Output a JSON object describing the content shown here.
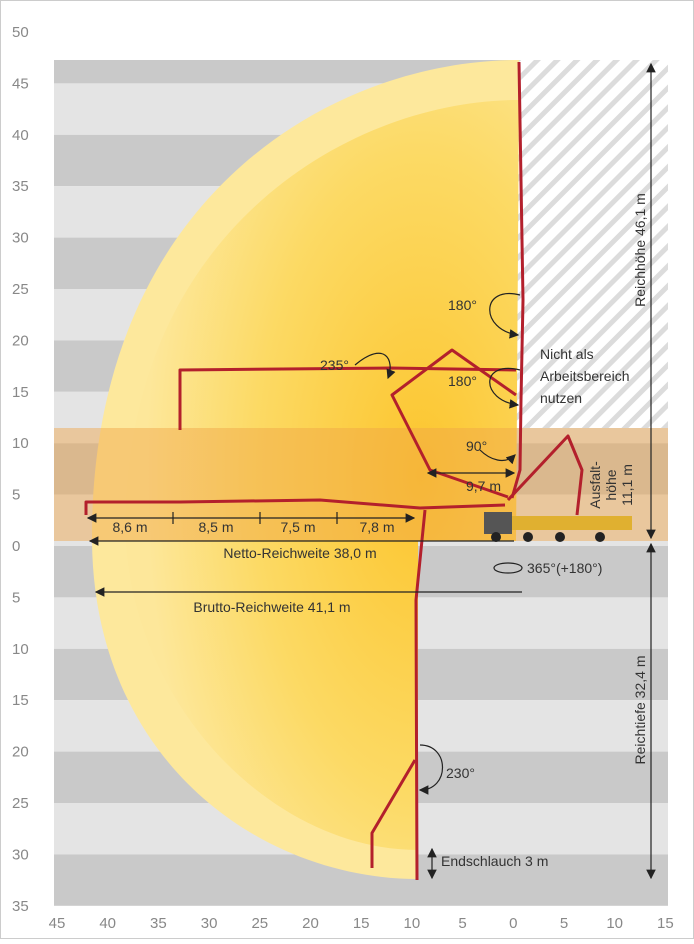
{
  "y_axis_labels": [
    50,
    45,
    40,
    35,
    30,
    25,
    20,
    15,
    10,
    5,
    0,
    5,
    10,
    15,
    20,
    25,
    30,
    35
  ],
  "x_axis_labels": [
    45,
    40,
    35,
    30,
    25,
    20,
    15,
    10,
    5,
    0,
    5,
    10,
    15
  ],
  "annotations": {
    "angle_top": "180°",
    "angle_left": "235°",
    "angle_mid": "180°",
    "angle_low": "90°",
    "angle_bottom": "230°",
    "rotation": "365°(+180°)",
    "no_work_zone": [
      "Nicht als",
      "Arbeitsbereich",
      "nutzen"
    ],
    "outrigger_height": [
      "Ausfalt-",
      "höhe",
      "11,1 m"
    ],
    "reach_height": "Reichhöhe 46,1 m",
    "reach_depth": "Reichtiefe 32,4 m",
    "segment_inner": "9,7 m",
    "segments": [
      "8,6 m",
      "8,5 m",
      "7,5 m",
      "7,8 m"
    ],
    "net_reach": "Netto-Reichweite 38,0 m",
    "gross_reach": "Brutto-Reichweite 41,1 m",
    "end_hose": "Endschlauch 3 m"
  }
}
